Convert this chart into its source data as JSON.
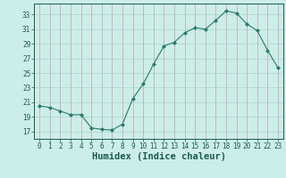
{
  "x": [
    0,
    1,
    2,
    3,
    4,
    5,
    6,
    7,
    8,
    9,
    10,
    11,
    12,
    13,
    14,
    15,
    16,
    17,
    18,
    19,
    20,
    21,
    22,
    23
  ],
  "y": [
    20.5,
    20.3,
    19.8,
    19.3,
    19.3,
    17.5,
    17.3,
    17.2,
    18.0,
    21.5,
    23.5,
    26.2,
    28.7,
    29.2,
    30.5,
    31.2,
    31.0,
    32.2,
    33.5,
    33.2,
    31.7,
    30.8,
    28.1,
    25.7
  ],
  "line_color": "#2a7a6a",
  "marker": "D",
  "marker_size": 2.0,
  "bg_color": "#cceee8",
  "grid_color": "#aad4cc",
  "grid_r_color": "#c8a0a0",
  "xlabel": "Humidex (Indice chaleur)",
  "xlim": [
    -0.5,
    23.5
  ],
  "ylim": [
    16.0,
    34.5
  ],
  "yticks": [
    17,
    19,
    21,
    23,
    25,
    27,
    29,
    31,
    33
  ],
  "xticks": [
    0,
    1,
    2,
    3,
    4,
    5,
    6,
    7,
    8,
    9,
    10,
    11,
    12,
    13,
    14,
    15,
    16,
    17,
    18,
    19,
    20,
    21,
    22,
    23
  ],
  "tick_labelsize": 5.5,
  "xlabel_fontsize": 7.5,
  "font_color": "#1a5a50"
}
